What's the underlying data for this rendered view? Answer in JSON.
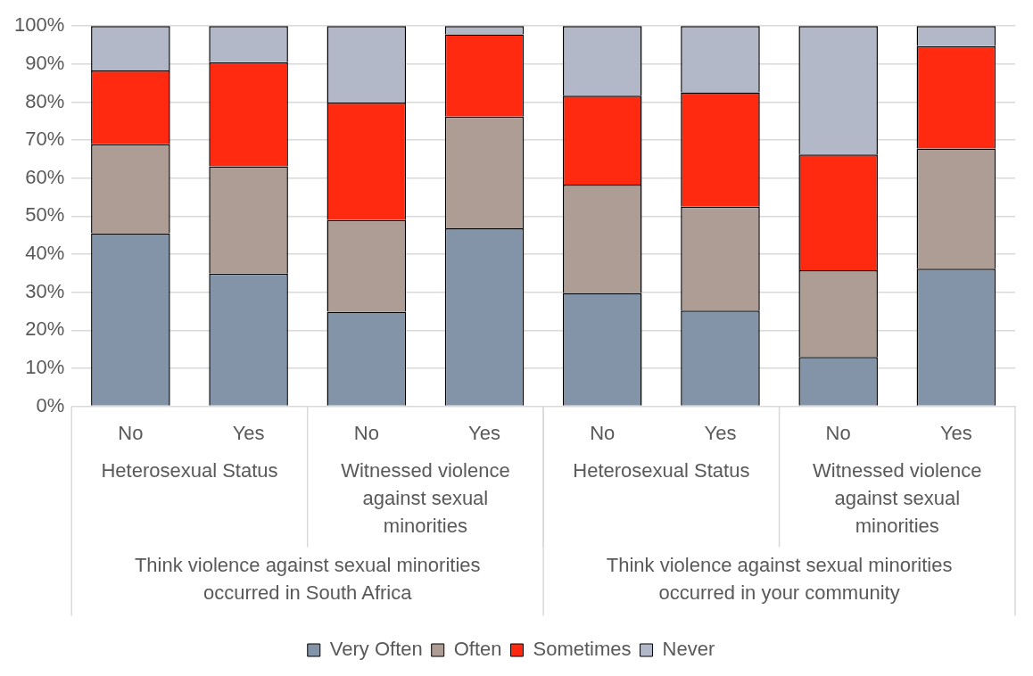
{
  "chart_data": {
    "type": "bar",
    "stacked": true,
    "categories": [
      "No",
      "Yes",
      "No",
      "Yes",
      "No",
      "Yes",
      "No",
      "Yes"
    ],
    "series": [
      {
        "name": "Very Often",
        "color": "#8494a8",
        "values": [
          45.5,
          34.9,
          24.9,
          46.8,
          29.8,
          25.2,
          13.0,
          36.2
        ]
      },
      {
        "name": "Often",
        "color": "#ae9d94",
        "values": [
          23.4,
          28.2,
          24.1,
          29.4,
          28.5,
          27.3,
          22.8,
          31.6
        ]
      },
      {
        "name": "Sometimes",
        "color": "#ff2a10",
        "values": [
          19.4,
          27.4,
          30.9,
          21.6,
          23.4,
          30.1,
          30.4,
          26.9
        ]
      },
      {
        "name": "Never",
        "color": "#b2b8c8",
        "values": [
          11.7,
          9.5,
          20.1,
          2.2,
          18.3,
          17.4,
          33.8,
          5.3
        ]
      }
    ],
    "ylim": [
      0,
      100
    ],
    "yticks": [
      {
        "value": 0,
        "label": "0%"
      },
      {
        "value": 10,
        "label": "10%"
      },
      {
        "value": 20,
        "label": "20%"
      },
      {
        "value": 30,
        "label": "30%"
      },
      {
        "value": 40,
        "label": "40%"
      },
      {
        "value": 50,
        "label": "50%"
      },
      {
        "value": 60,
        "label": "60%"
      },
      {
        "value": 70,
        "label": "70%"
      },
      {
        "value": 80,
        "label": "80%"
      },
      {
        "value": 90,
        "label": "90%"
      },
      {
        "value": 100,
        "label": "100%"
      }
    ],
    "grid": "y",
    "legend": "bottom",
    "annotations": [
      "Heterosexual Status",
      "Witnessed violence against sexual minorities",
      "Heterosexual Status",
      "Witnessed violence against sexual minorities",
      "Think violence against sexual minorities occurred in South Africa",
      "Think violence against sexual minorities occurred in your community"
    ]
  }
}
